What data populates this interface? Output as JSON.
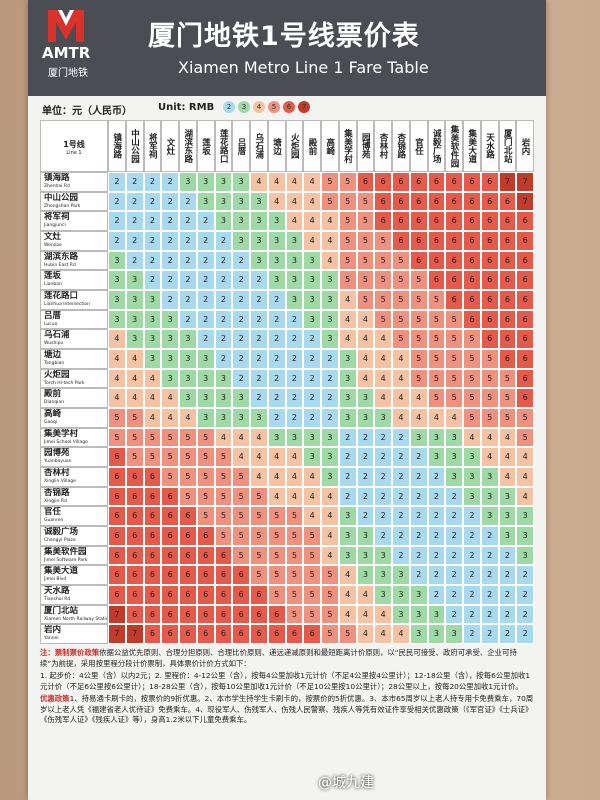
{
  "header": {
    "logo": "AMTR",
    "logo_sub": "厦门地铁",
    "title": "厦门地铁1号线票价表",
    "subtitle": "Xiamen Metro Line 1 Fare Table"
  },
  "unit": {
    "label_cn": "单位：元（人民币）",
    "label_en": "Unit: RMB",
    "legend": [
      2,
      3,
      4,
      5,
      6,
      7
    ]
  },
  "fare_colors": {
    "2": "#a9d9ef",
    "3": "#9fd9a6",
    "4": "#f6c2a4",
    "5": "#f0907e",
    "6": "#e65a4b",
    "7": "#c23a2a"
  },
  "table": {
    "corner": "1号线",
    "corner_en": "Line 1",
    "stations": [
      {
        "name": "镇海路",
        "name_en": "Zhenhai Rd"
      },
      {
        "name": "中山公园",
        "name_en": "Zhongshan Park"
      },
      {
        "name": "将军祠",
        "name_en": "Jiangjunci"
      },
      {
        "name": "文灶",
        "name_en": "Wenzao"
      },
      {
        "name": "湖滨东路",
        "name_en": "Hubin East Rd"
      },
      {
        "name": "莲坂",
        "name_en": "Lianban"
      },
      {
        "name": "莲花路口",
        "name_en": "Lianhua Intersection"
      },
      {
        "name": "吕厝",
        "name_en": "Lucuo"
      },
      {
        "name": "乌石浦",
        "name_en": "Wushipu"
      },
      {
        "name": "塘边",
        "name_en": "Tangbian"
      },
      {
        "name": "火炬园",
        "name_en": "Torch Hi-tech Park"
      },
      {
        "name": "殿前",
        "name_en": "Dianqian"
      },
      {
        "name": "高崎",
        "name_en": "Gaoqi"
      },
      {
        "name": "集美学村",
        "name_en": "Jimei School Village"
      },
      {
        "name": "园博苑",
        "name_en": "Yuanboyuan"
      },
      {
        "name": "杏林村",
        "name_en": "Xinglin Village"
      },
      {
        "name": "杏锦路",
        "name_en": "Xingjin Rd"
      },
      {
        "name": "官任",
        "name_en": "Guanren"
      },
      {
        "name": "诚毅广场",
        "name_en": "Chengyi Plaza"
      },
      {
        "name": "集美软件园",
        "name_en": "Jimei Software Park"
      },
      {
        "name": "集美大道",
        "name_en": "Jimei Blvd"
      },
      {
        "name": "天水路",
        "name_en": "Tianshui Rd"
      },
      {
        "name": "厦门北站",
        "name_en": "Xiamen North Railway Station"
      },
      {
        "name": "岩内",
        "name_en": "Yannei"
      }
    ],
    "rows": [
      [
        2,
        2,
        2,
        2,
        3,
        3,
        3,
        3,
        4,
        4,
        4,
        4,
        5,
        5,
        6,
        6,
        6,
        6,
        6,
        6,
        6,
        6,
        7,
        7
      ],
      [
        2,
        2,
        2,
        2,
        2,
        3,
        3,
        3,
        3,
        4,
        4,
        4,
        5,
        5,
        5,
        6,
        6,
        6,
        6,
        6,
        6,
        6,
        6,
        7
      ],
      [
        2,
        2,
        2,
        2,
        2,
        2,
        3,
        3,
        3,
        3,
        4,
        4,
        4,
        5,
        5,
        6,
        6,
        6,
        6,
        6,
        6,
        6,
        6,
        6
      ],
      [
        2,
        2,
        2,
        2,
        2,
        2,
        2,
        3,
        3,
        3,
        3,
        4,
        4,
        5,
        5,
        5,
        6,
        6,
        6,
        6,
        6,
        6,
        6,
        6
      ],
      [
        3,
        2,
        2,
        2,
        2,
        2,
        2,
        2,
        3,
        3,
        3,
        3,
        4,
        5,
        5,
        5,
        5,
        6,
        6,
        6,
        6,
        6,
        6,
        6
      ],
      [
        3,
        3,
        2,
        2,
        2,
        2,
        2,
        2,
        2,
        3,
        3,
        3,
        3,
        5,
        5,
        5,
        5,
        5,
        6,
        6,
        6,
        6,
        6,
        6
      ],
      [
        3,
        3,
        3,
        2,
        2,
        2,
        2,
        2,
        2,
        2,
        3,
        3,
        3,
        4,
        5,
        5,
        5,
        5,
        5,
        6,
        6,
        6,
        6,
        6
      ],
      [
        3,
        3,
        3,
        3,
        2,
        2,
        2,
        2,
        2,
        2,
        2,
        3,
        3,
        4,
        4,
        5,
        5,
        5,
        5,
        5,
        6,
        6,
        6,
        6
      ],
      [
        4,
        3,
        3,
        3,
        3,
        2,
        2,
        2,
        2,
        2,
        2,
        2,
        3,
        4,
        4,
        4,
        5,
        5,
        5,
        5,
        5,
        6,
        6,
        6
      ],
      [
        4,
        4,
        3,
        3,
        3,
        3,
        2,
        2,
        2,
        2,
        2,
        2,
        2,
        3,
        4,
        4,
        4,
        5,
        5,
        5,
        5,
        5,
        6,
        6
      ],
      [
        4,
        4,
        4,
        3,
        3,
        3,
        3,
        2,
        2,
        2,
        2,
        2,
        2,
        3,
        4,
        4,
        4,
        5,
        5,
        5,
        5,
        5,
        5,
        6
      ],
      [
        4,
        4,
        4,
        4,
        3,
        3,
        3,
        3,
        2,
        2,
        2,
        2,
        2,
        3,
        3,
        4,
        4,
        4,
        5,
        5,
        5,
        5,
        5,
        6
      ],
      [
        5,
        5,
        4,
        4,
        4,
        3,
        3,
        3,
        3,
        2,
        2,
        2,
        2,
        3,
        3,
        3,
        4,
        4,
        4,
        4,
        5,
        5,
        5,
        5
      ],
      [
        5,
        5,
        5,
        5,
        5,
        5,
        4,
        4,
        4,
        3,
        3,
        3,
        3,
        2,
        2,
        2,
        2,
        3,
        3,
        3,
        4,
        4,
        4,
        5
      ],
      [
        6,
        5,
        5,
        5,
        5,
        5,
        5,
        4,
        4,
        4,
        4,
        3,
        3,
        2,
        2,
        2,
        2,
        2,
        3,
        3,
        3,
        4,
        4,
        4
      ],
      [
        6,
        6,
        6,
        5,
        5,
        5,
        5,
        5,
        4,
        4,
        4,
        4,
        3,
        2,
        2,
        2,
        2,
        2,
        2,
        3,
        3,
        3,
        4,
        4
      ],
      [
        6,
        6,
        6,
        6,
        5,
        5,
        5,
        5,
        5,
        4,
        4,
        4,
        4,
        2,
        2,
        2,
        2,
        2,
        2,
        2,
        3,
        3,
        3,
        4
      ],
      [
        6,
        6,
        6,
        6,
        6,
        5,
        5,
        5,
        5,
        5,
        5,
        4,
        4,
        3,
        2,
        2,
        2,
        2,
        2,
        2,
        2,
        3,
        3,
        3
      ],
      [
        6,
        6,
        6,
        6,
        6,
        6,
        5,
        5,
        5,
        5,
        5,
        5,
        4,
        3,
        3,
        2,
        2,
        2,
        2,
        2,
        2,
        2,
        3,
        3
      ],
      [
        6,
        6,
        6,
        6,
        6,
        6,
        6,
        5,
        5,
        5,
        5,
        5,
        4,
        3,
        3,
        3,
        2,
        2,
        2,
        2,
        2,
        2,
        2,
        3
      ],
      [
        6,
        6,
        6,
        6,
        6,
        6,
        6,
        6,
        5,
        5,
        5,
        5,
        5,
        4,
        3,
        3,
        3,
        2,
        2,
        2,
        2,
        2,
        2,
        2
      ],
      [
        6,
        6,
        6,
        6,
        6,
        6,
        6,
        6,
        6,
        5,
        5,
        5,
        5,
        4,
        4,
        3,
        3,
        3,
        2,
        2,
        2,
        2,
        2,
        2
      ],
      [
        7,
        6,
        6,
        6,
        6,
        6,
        6,
        6,
        6,
        6,
        5,
        5,
        5,
        4,
        4,
        4,
        3,
        3,
        3,
        2,
        2,
        2,
        2,
        2
      ],
      [
        7,
        7,
        6,
        6,
        6,
        6,
        6,
        6,
        6,
        6,
        6,
        6,
        5,
        5,
        4,
        4,
        4,
        3,
        3,
        3,
        2,
        2,
        2,
        2
      ]
    ]
  },
  "notes": [
    {
      "label": "注：票制票价政策",
      "text": "依据公益优先原则、合理分担原则、合理比价原则、递远递减原则和最短距离计价原则，以“民民可接受、政府可承受、企业可持续”为前提，采用按里程分段计价票制，具体票价计价方式如下："
    },
    {
      "label": "",
      "text": "1. 起步价：4公里（含）以内2元；2. 里程价：4-12公里（含），按每4公里加收1元计价（不足4公里按4公里计）；12-18公里（含），按每6公里加收1元计价（不足6公里按6公里计）；18-28公里（含），按每10公里加收1元计价（不足10公里按10公里计）；28公里以上，按每20公里加收1元计价。"
    },
    {
      "label": "优惠政策",
      "text": "1、持易通卡刷卡的，按票价的9折优惠。2、本市学生持学生卡刷卡的，按票价的5折优惠。3、本市65周岁以上老人持专用卡免费乘车，70周岁以上老人凭《福建省老人优待证》免费乘车。4、现役军人、伤残军人、伤残人民警察、残疾人等凭有效证件享受相关优惠政策（《军官证》《士兵证》《伤残军人证》《残疾人证》等），身高1.2米以下儿童免费乘车。"
    }
  ],
  "watermark": "@城九建"
}
